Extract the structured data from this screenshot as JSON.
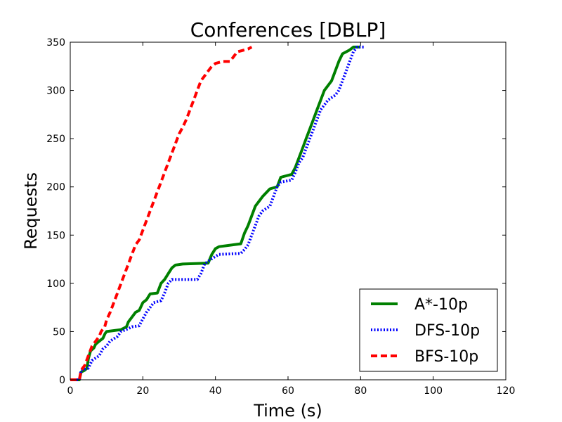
{
  "chart_data": {
    "type": "line",
    "title": "Conferences [DBLP]",
    "xlabel": "Time (s)",
    "ylabel": "Requests",
    "xlim": [
      0,
      120
    ],
    "ylim": [
      0,
      350
    ],
    "xticks": [
      0,
      20,
      40,
      60,
      80,
      100,
      120
    ],
    "yticks": [
      0,
      50,
      100,
      150,
      200,
      250,
      300,
      350
    ],
    "grid": false,
    "legend_position": "lower-right",
    "series": [
      {
        "name": "A*-10p",
        "color": "#008000",
        "style": "solid",
        "points": [
          [
            0,
            0
          ],
          [
            2.5,
            0
          ],
          [
            3,
            8
          ],
          [
            4,
            10
          ],
          [
            4.6,
            12
          ],
          [
            5,
            22
          ],
          [
            5.6,
            30
          ],
          [
            6.5,
            33
          ],
          [
            7,
            37
          ],
          [
            8,
            40
          ],
          [
            9,
            43
          ],
          [
            9.6,
            48
          ],
          [
            10,
            50
          ],
          [
            14,
            52
          ],
          [
            15.5,
            55
          ],
          [
            16,
            60
          ],
          [
            17,
            65
          ],
          [
            18,
            70
          ],
          [
            19,
            72
          ],
          [
            20,
            80
          ],
          [
            21,
            83
          ],
          [
            22,
            89
          ],
          [
            24,
            90
          ],
          [
            25,
            100
          ],
          [
            26,
            104
          ],
          [
            27,
            110
          ],
          [
            28,
            116
          ],
          [
            29,
            119
          ],
          [
            31,
            120
          ],
          [
            38,
            121
          ],
          [
            39,
            130
          ],
          [
            40,
            136
          ],
          [
            41,
            138
          ],
          [
            47,
            141
          ],
          [
            48,
            152
          ],
          [
            49,
            160
          ],
          [
            50,
            170
          ],
          [
            51,
            180
          ],
          [
            53,
            190
          ],
          [
            55,
            198
          ],
          [
            57,
            200
          ],
          [
            58,
            210
          ],
          [
            61,
            213
          ],
          [
            62,
            220
          ],
          [
            63,
            230
          ],
          [
            64,
            240
          ],
          [
            65,
            250
          ],
          [
            66,
            260
          ],
          [
            67,
            270
          ],
          [
            68,
            280
          ],
          [
            69,
            290
          ],
          [
            70,
            300
          ],
          [
            72,
            310
          ],
          [
            73,
            320
          ],
          [
            74,
            330
          ],
          [
            75,
            338
          ],
          [
            76,
            340
          ],
          [
            77,
            342
          ],
          [
            78,
            345
          ],
          [
            80,
            345
          ]
        ]
      },
      {
        "name": "DFS-10p",
        "color": "#0000ff",
        "style": "dotted",
        "points": [
          [
            0,
            0
          ],
          [
            2.5,
            0
          ],
          [
            3,
            10
          ],
          [
            5,
            12
          ],
          [
            6,
            20
          ],
          [
            8,
            25
          ],
          [
            9,
            32
          ],
          [
            10,
            35
          ],
          [
            11,
            40
          ],
          [
            13,
            45
          ],
          [
            14,
            50
          ],
          [
            16,
            53
          ],
          [
            17,
            55
          ],
          [
            19,
            56
          ],
          [
            20,
            63
          ],
          [
            21,
            70
          ],
          [
            22,
            75
          ],
          [
            23,
            80
          ],
          [
            25,
            82
          ],
          [
            26,
            90
          ],
          [
            27,
            100
          ],
          [
            28,
            104
          ],
          [
            35,
            104
          ],
          [
            36,
            110
          ],
          [
            37,
            120
          ],
          [
            38,
            123
          ],
          [
            40,
            128
          ],
          [
            41,
            130
          ],
          [
            47,
            131
          ],
          [
            48,
            135
          ],
          [
            49,
            140
          ],
          [
            50,
            150
          ],
          [
            51,
            160
          ],
          [
            52,
            170
          ],
          [
            53,
            175
          ],
          [
            55,
            180
          ],
          [
            56,
            190
          ],
          [
            57,
            200
          ],
          [
            58,
            205
          ],
          [
            61,
            207
          ],
          [
            62,
            215
          ],
          [
            63,
            225
          ],
          [
            64,
            230
          ],
          [
            65,
            240
          ],
          [
            66,
            250
          ],
          [
            67,
            260
          ],
          [
            68,
            270
          ],
          [
            69,
            280
          ],
          [
            70,
            285
          ],
          [
            71,
            290
          ],
          [
            73,
            295
          ],
          [
            74,
            300
          ],
          [
            75,
            310
          ],
          [
            76,
            320
          ],
          [
            77,
            330
          ],
          [
            78,
            340
          ],
          [
            79,
            345
          ],
          [
            81,
            345
          ]
        ]
      },
      {
        "name": "BFS-10p",
        "color": "#ff0000",
        "style": "dashed",
        "points": [
          [
            0,
            0
          ],
          [
            2.5,
            0
          ],
          [
            3,
            10
          ],
          [
            4,
            15
          ],
          [
            5,
            25
          ],
          [
            6,
            35
          ],
          [
            7,
            40
          ],
          [
            8,
            45
          ],
          [
            8.5,
            50
          ],
          [
            9.5,
            55
          ],
          [
            10,
            62
          ],
          [
            11,
            70
          ],
          [
            12,
            80
          ],
          [
            13,
            90
          ],
          [
            14,
            100
          ],
          [
            15,
            110
          ],
          [
            16,
            120
          ],
          [
            17,
            130
          ],
          [
            18,
            140
          ],
          [
            19,
            145
          ],
          [
            20,
            155
          ],
          [
            21,
            165
          ],
          [
            22,
            175
          ],
          [
            23,
            185
          ],
          [
            24,
            195
          ],
          [
            25,
            205
          ],
          [
            26,
            215
          ],
          [
            27,
            225
          ],
          [
            28,
            235
          ],
          [
            29,
            245
          ],
          [
            30,
            255
          ],
          [
            31,
            262
          ],
          [
            32,
            270
          ],
          [
            33,
            280
          ],
          [
            34,
            290
          ],
          [
            35,
            300
          ],
          [
            36,
            310
          ],
          [
            37,
            315
          ],
          [
            38,
            320
          ],
          [
            39,
            325
          ],
          [
            40,
            328
          ],
          [
            42,
            330
          ],
          [
            44,
            330
          ],
          [
            45,
            335
          ],
          [
            46,
            340
          ],
          [
            48,
            342
          ],
          [
            49,
            343
          ],
          [
            50,
            345
          ]
        ]
      }
    ]
  }
}
